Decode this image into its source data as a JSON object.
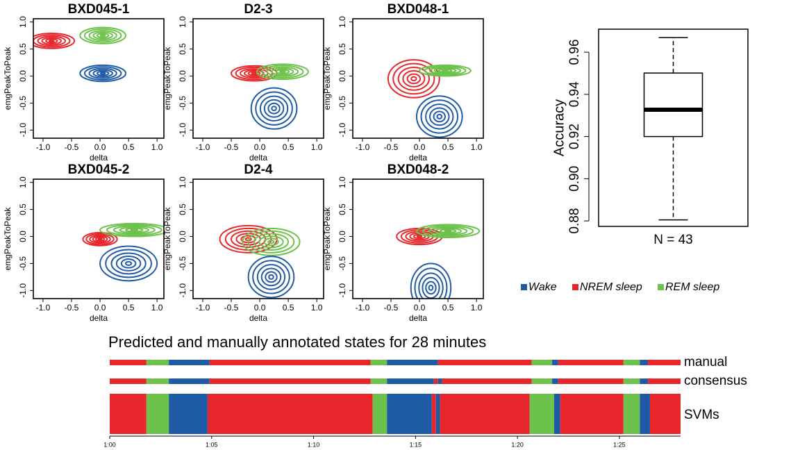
{
  "chart_data": [
    {
      "type": "contour",
      "title": "BXD045-1",
      "xlabel": "delta",
      "ylabel": "emgPeakToPeak",
      "xlim": [
        -1.17,
        1.12
      ],
      "ylim": [
        -1.15,
        1.06
      ],
      "xticks": [
        {
          "value": -1,
          "label": "-1.0"
        },
        -0.5,
        {
          "value": 0,
          "label": "0.0"
        },
        0.5,
        {
          "value": 1,
          "label": "1.0"
        }
      ],
      "yticks": [
        {
          "value": -1,
          "label": "-1.0"
        },
        -0.5,
        {
          "value": 0,
          "label": "0.0"
        },
        0.5,
        {
          "value": 1,
          "label": "1.0"
        }
      ],
      "series": [
        {
          "color": "#e8262b",
          "center": [
            -0.85,
            0.65
          ],
          "spread": [
            0.4,
            0.14
          ]
        },
        {
          "color": "#6cc24a",
          "center": [
            0.05,
            0.75
          ],
          "spread": [
            0.4,
            0.15
          ]
        },
        {
          "color": "#1f5aa6",
          "center": [
            0.05,
            0.05
          ],
          "spread": [
            0.4,
            0.15
          ]
        }
      ]
    },
    {
      "type": "contour",
      "title": "D2-3",
      "xlabel": "delta",
      "ylabel": "emgPeakToPeak",
      "xlim": [
        -1.17,
        1.12
      ],
      "ylim": [
        -1.15,
        1.06
      ],
      "xticks": [
        {
          "value": -1,
          "label": "-1.0"
        },
        -0.5,
        {
          "value": 0,
          "label": "0.0"
        },
        0.5,
        {
          "value": 1,
          "label": "1.0"
        }
      ],
      "yticks": [
        {
          "value": -1,
          "label": "-1.0"
        },
        -0.5,
        {
          "value": 0,
          "label": "0.0"
        },
        0.5,
        {
          "value": 1,
          "label": "1.0"
        }
      ],
      "series": [
        {
          "color": "#e8262b",
          "center": [
            -0.1,
            0.05
          ],
          "spread": [
            0.4,
            0.14
          ]
        },
        {
          "color": "#6cc24a",
          "center": [
            0.4,
            0.08
          ],
          "spread": [
            0.45,
            0.14
          ]
        },
        {
          "color": "#1f5aa6",
          "center": [
            0.25,
            -0.6
          ],
          "spread": [
            0.4,
            0.38
          ]
        }
      ]
    },
    {
      "type": "contour",
      "title": "BXD048-1",
      "xlabel": "delta",
      "ylabel": "emgPeakToPeak",
      "xlim": [
        -1.17,
        1.12
      ],
      "ylim": [
        -1.15,
        1.06
      ],
      "xticks": [
        {
          "value": -1,
          "label": "-1.0"
        },
        -0.5,
        {
          "value": 0,
          "label": "0.0"
        },
        0.5,
        {
          "value": 1,
          "label": "1.0"
        }
      ],
      "yticks": [
        {
          "value": -1,
          "label": "-1.0"
        },
        -0.5,
        {
          "value": 0,
          "label": "0.0"
        },
        0.5,
        {
          "value": 1,
          "label": "1.0"
        }
      ],
      "series": [
        {
          "color": "#e8262b",
          "center": [
            -0.1,
            -0.05
          ],
          "spread": [
            0.45,
            0.35
          ]
        },
        {
          "color": "#6cc24a",
          "center": [
            0.45,
            0.1
          ],
          "spread": [
            0.45,
            0.1
          ]
        },
        {
          "color": "#1f5aa6",
          "center": [
            0.35,
            -0.75
          ],
          "spread": [
            0.4,
            0.38
          ]
        }
      ]
    },
    {
      "type": "contour",
      "title": "BXD045-2",
      "xlabel": "delta",
      "ylabel": "emgPeakToPeak",
      "xlim": [
        -1.17,
        1.12
      ],
      "ylim": [
        -1.15,
        1.06
      ],
      "xticks": [
        {
          "value": -1,
          "label": "-1.0"
        },
        -0.5,
        {
          "value": 0,
          "label": "0.0"
        },
        0.5,
        {
          "value": 1,
          "label": "1.0"
        }
      ],
      "yticks": [
        {
          "value": -1,
          "label": "-1.0"
        },
        -0.5,
        {
          "value": 0,
          "label": "0.0"
        },
        0.5,
        {
          "value": 1,
          "label": "1.0"
        }
      ],
      "series": [
        {
          "color": "#e8262b",
          "center": [
            0.0,
            -0.05
          ],
          "spread": [
            0.3,
            0.12
          ]
        },
        {
          "color": "#6cc24a",
          "center": [
            0.6,
            0.12
          ],
          "spread": [
            0.6,
            0.12
          ]
        },
        {
          "color": "#1f5aa6",
          "center": [
            0.5,
            -0.5
          ],
          "spread": [
            0.5,
            0.32
          ]
        }
      ]
    },
    {
      "type": "contour",
      "title": "D2-4",
      "xlabel": "delta",
      "ylabel": "emgPeakToPeak",
      "xlim": [
        -1.17,
        1.12
      ],
      "ylim": [
        -1.15,
        1.06
      ],
      "xticks": [
        {
          "value": -1,
          "label": "-1.0"
        },
        -0.5,
        {
          "value": 0,
          "label": "0.0"
        },
        0.5,
        {
          "value": 1,
          "label": "1.0"
        }
      ],
      "yticks": [
        {
          "value": -1,
          "label": "-1.0"
        },
        -0.5,
        {
          "value": 0,
          "label": "0.0"
        },
        0.5,
        {
          "value": 1,
          "label": "1.0"
        }
      ],
      "series": [
        {
          "color": "#e8262b",
          "center": [
            -0.2,
            -0.05
          ],
          "spread": [
            0.5,
            0.25
          ]
        },
        {
          "color": "#6cc24a",
          "center": [
            0.2,
            -0.1
          ],
          "spread": [
            0.5,
            0.25
          ]
        },
        {
          "color": "#1f5aa6",
          "center": [
            0.2,
            -0.75
          ],
          "spread": [
            0.4,
            0.38
          ]
        }
      ]
    },
    {
      "type": "contour",
      "title": "BXD048-2",
      "xlabel": "delta",
      "ylabel": "emgPeakToPeak",
      "xlim": [
        -1.17,
        1.12
      ],
      "ylim": [
        -1.15,
        1.06
      ],
      "xticks": [
        {
          "value": -1,
          "label": "-1.0"
        },
        -0.5,
        {
          "value": 0,
          "label": "0.0"
        },
        0.5,
        {
          "value": 1,
          "label": "1.0"
        }
      ],
      "yticks": [
        {
          "value": -1,
          "label": "-1.0"
        },
        -0.5,
        {
          "value": 0,
          "label": "0.0"
        },
        0.5,
        {
          "value": 1,
          "label": "1.0"
        }
      ],
      "series": [
        {
          "color": "#e8262b",
          "center": [
            0.0,
            0.0
          ],
          "spread": [
            0.4,
            0.15
          ]
        },
        {
          "color": "#6cc24a",
          "center": [
            0.5,
            0.1
          ],
          "spread": [
            0.55,
            0.12
          ]
        },
        {
          "color": "#1f5aa6",
          "center": [
            0.2,
            -0.95
          ],
          "spread": [
            0.35,
            0.45
          ]
        }
      ]
    },
    {
      "type": "box",
      "ylabel": "Accuracy",
      "xlabel": "N = 43",
      "ylim": [
        0.8774,
        0.9709
      ],
      "yticks": [
        0.88,
        {
          "value": 0.9,
          "label": "0.90"
        },
        0.92,
        0.94,
        0.96
      ],
      "min": 0.8805,
      "q1": 0.92,
      "median": 0.9327,
      "q3": 0.9501,
      "max": 0.9669
    },
    {
      "type": "timeline",
      "title": "Predicted and manually annotated states for 28 minutes",
      "xlim": [
        0,
        28
      ],
      "xticks": [
        {
          "value": 0,
          "label": "1:00"
        },
        {
          "value": 5,
          "label": "1:05"
        },
        {
          "value": 10,
          "label": "1:10"
        },
        {
          "value": 15,
          "label": "1:15"
        },
        {
          "value": 20,
          "label": "1:20"
        },
        {
          "value": 25,
          "label": "1:25"
        }
      ],
      "tracks": [
        {
          "name": "manual",
          "starts": [
            0,
            1.8,
            2.9,
            4.9,
            12.8,
            13.6,
            16.1,
            20.7,
            21.7,
            22.0,
            25.2,
            26.0,
            26.4
          ],
          "states": [
            1,
            2,
            0,
            1,
            2,
            0,
            1,
            2,
            0,
            1,
            2,
            0,
            1
          ]
        },
        {
          "name": "consensus",
          "starts": [
            0,
            1.8,
            2.9,
            4.9,
            12.8,
            13.6,
            15.9,
            16.1,
            16.3,
            20.7,
            21.7,
            22.0,
            25.2,
            26.0,
            26.4
          ],
          "states": [
            1,
            2,
            0,
            1,
            2,
            0,
            1,
            0,
            1,
            2,
            0,
            1,
            2,
            0,
            1
          ]
        },
        {
          "name": "SVMs",
          "starts": [
            0,
            1.8,
            2.9,
            4.8,
            12.9,
            13.6,
            15.8,
            16.0,
            16.2,
            20.6,
            21.8,
            22.1,
            25.2,
            26.0,
            26.5
          ],
          "states": [
            1,
            2,
            0,
            1,
            2,
            0,
            1,
            0,
            1,
            2,
            0,
            1,
            2,
            0,
            1
          ]
        }
      ]
    }
  ],
  "legend": {
    "items": [
      {
        "name": "Wake",
        "color": "#1f5aa6"
      },
      {
        "name": "NREM sleep",
        "color": "#e8262b"
      },
      {
        "name": "REM sleep",
        "color": "#6cc24a"
      }
    ]
  }
}
